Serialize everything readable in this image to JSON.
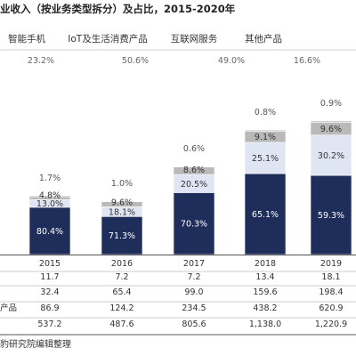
{
  "chart_data": {
    "type": "bar",
    "title": "业收入（按业务类型拆分）及占比，2015-2020年",
    "legend": [
      "智能手机",
      "IoT及生活消费产品",
      "互联网服务",
      "其他产品"
    ],
    "legend_pct": [
      "23.2%",
      "50.6%",
      "49.0%",
      "16.6%"
    ],
    "categories": [
      "2015",
      "2016",
      "2017",
      "2018",
      "2019"
    ],
    "totals": [
      537.2,
      487.6,
      805.6,
      1138.0,
      1220.9
    ],
    "series": [
      {
        "name": "智能手机",
        "color": "#1f2d5a",
        "values": [
          80.4,
          71.3,
          70.3,
          65.1,
          59.3
        ],
        "labels": [
          "80.4%",
          "71.3%",
          "70.3%",
          "65.1%",
          "59.3%"
        ]
      },
      {
        "name": "IoT及生活消费产品",
        "color": "#dfe5f3",
        "values": [
          13.0,
          18.1,
          20.5,
          25.1,
          30.2
        ],
        "labels": [
          "13.0%",
          "18.1%",
          "20.5%",
          "25.1%",
          "30.2%"
        ]
      },
      {
        "name": "互联网服务",
        "color": "#b9b9b9",
        "values": [
          4.8,
          9.6,
          8.6,
          9.1,
          9.6
        ],
        "labels": [
          "4.8%",
          "9.6%",
          "8.6%",
          "9.1%",
          "9.6%"
        ]
      },
      {
        "name": "其他产品",
        "color": "#b9b9b9",
        "values": [
          1.7,
          1.0,
          0.6,
          0.8,
          0.9
        ],
        "labels": [
          "1.7%",
          "1.0%",
          "0.6%",
          "0.8%",
          "0.9%"
        ]
      }
    ],
    "table": [
      {
        "label": "",
        "values": [
          "11.7",
          "7.2",
          "7.2",
          "13.4",
          "18.1"
        ]
      },
      {
        "label": "",
        "values": [
          "32.4",
          "65.4",
          "99.0",
          "159.6",
          "198.4"
        ]
      },
      {
        "label": "产品",
        "values": [
          "86.9",
          "124.2",
          "234.5",
          "438.2",
          "620.9"
        ]
      },
      {
        "label": "",
        "values": [
          "537.2",
          "487.6",
          "805.6",
          "1,138.0",
          "1,220.9"
        ]
      }
    ]
  },
  "source": "豹研究院编辑整理"
}
